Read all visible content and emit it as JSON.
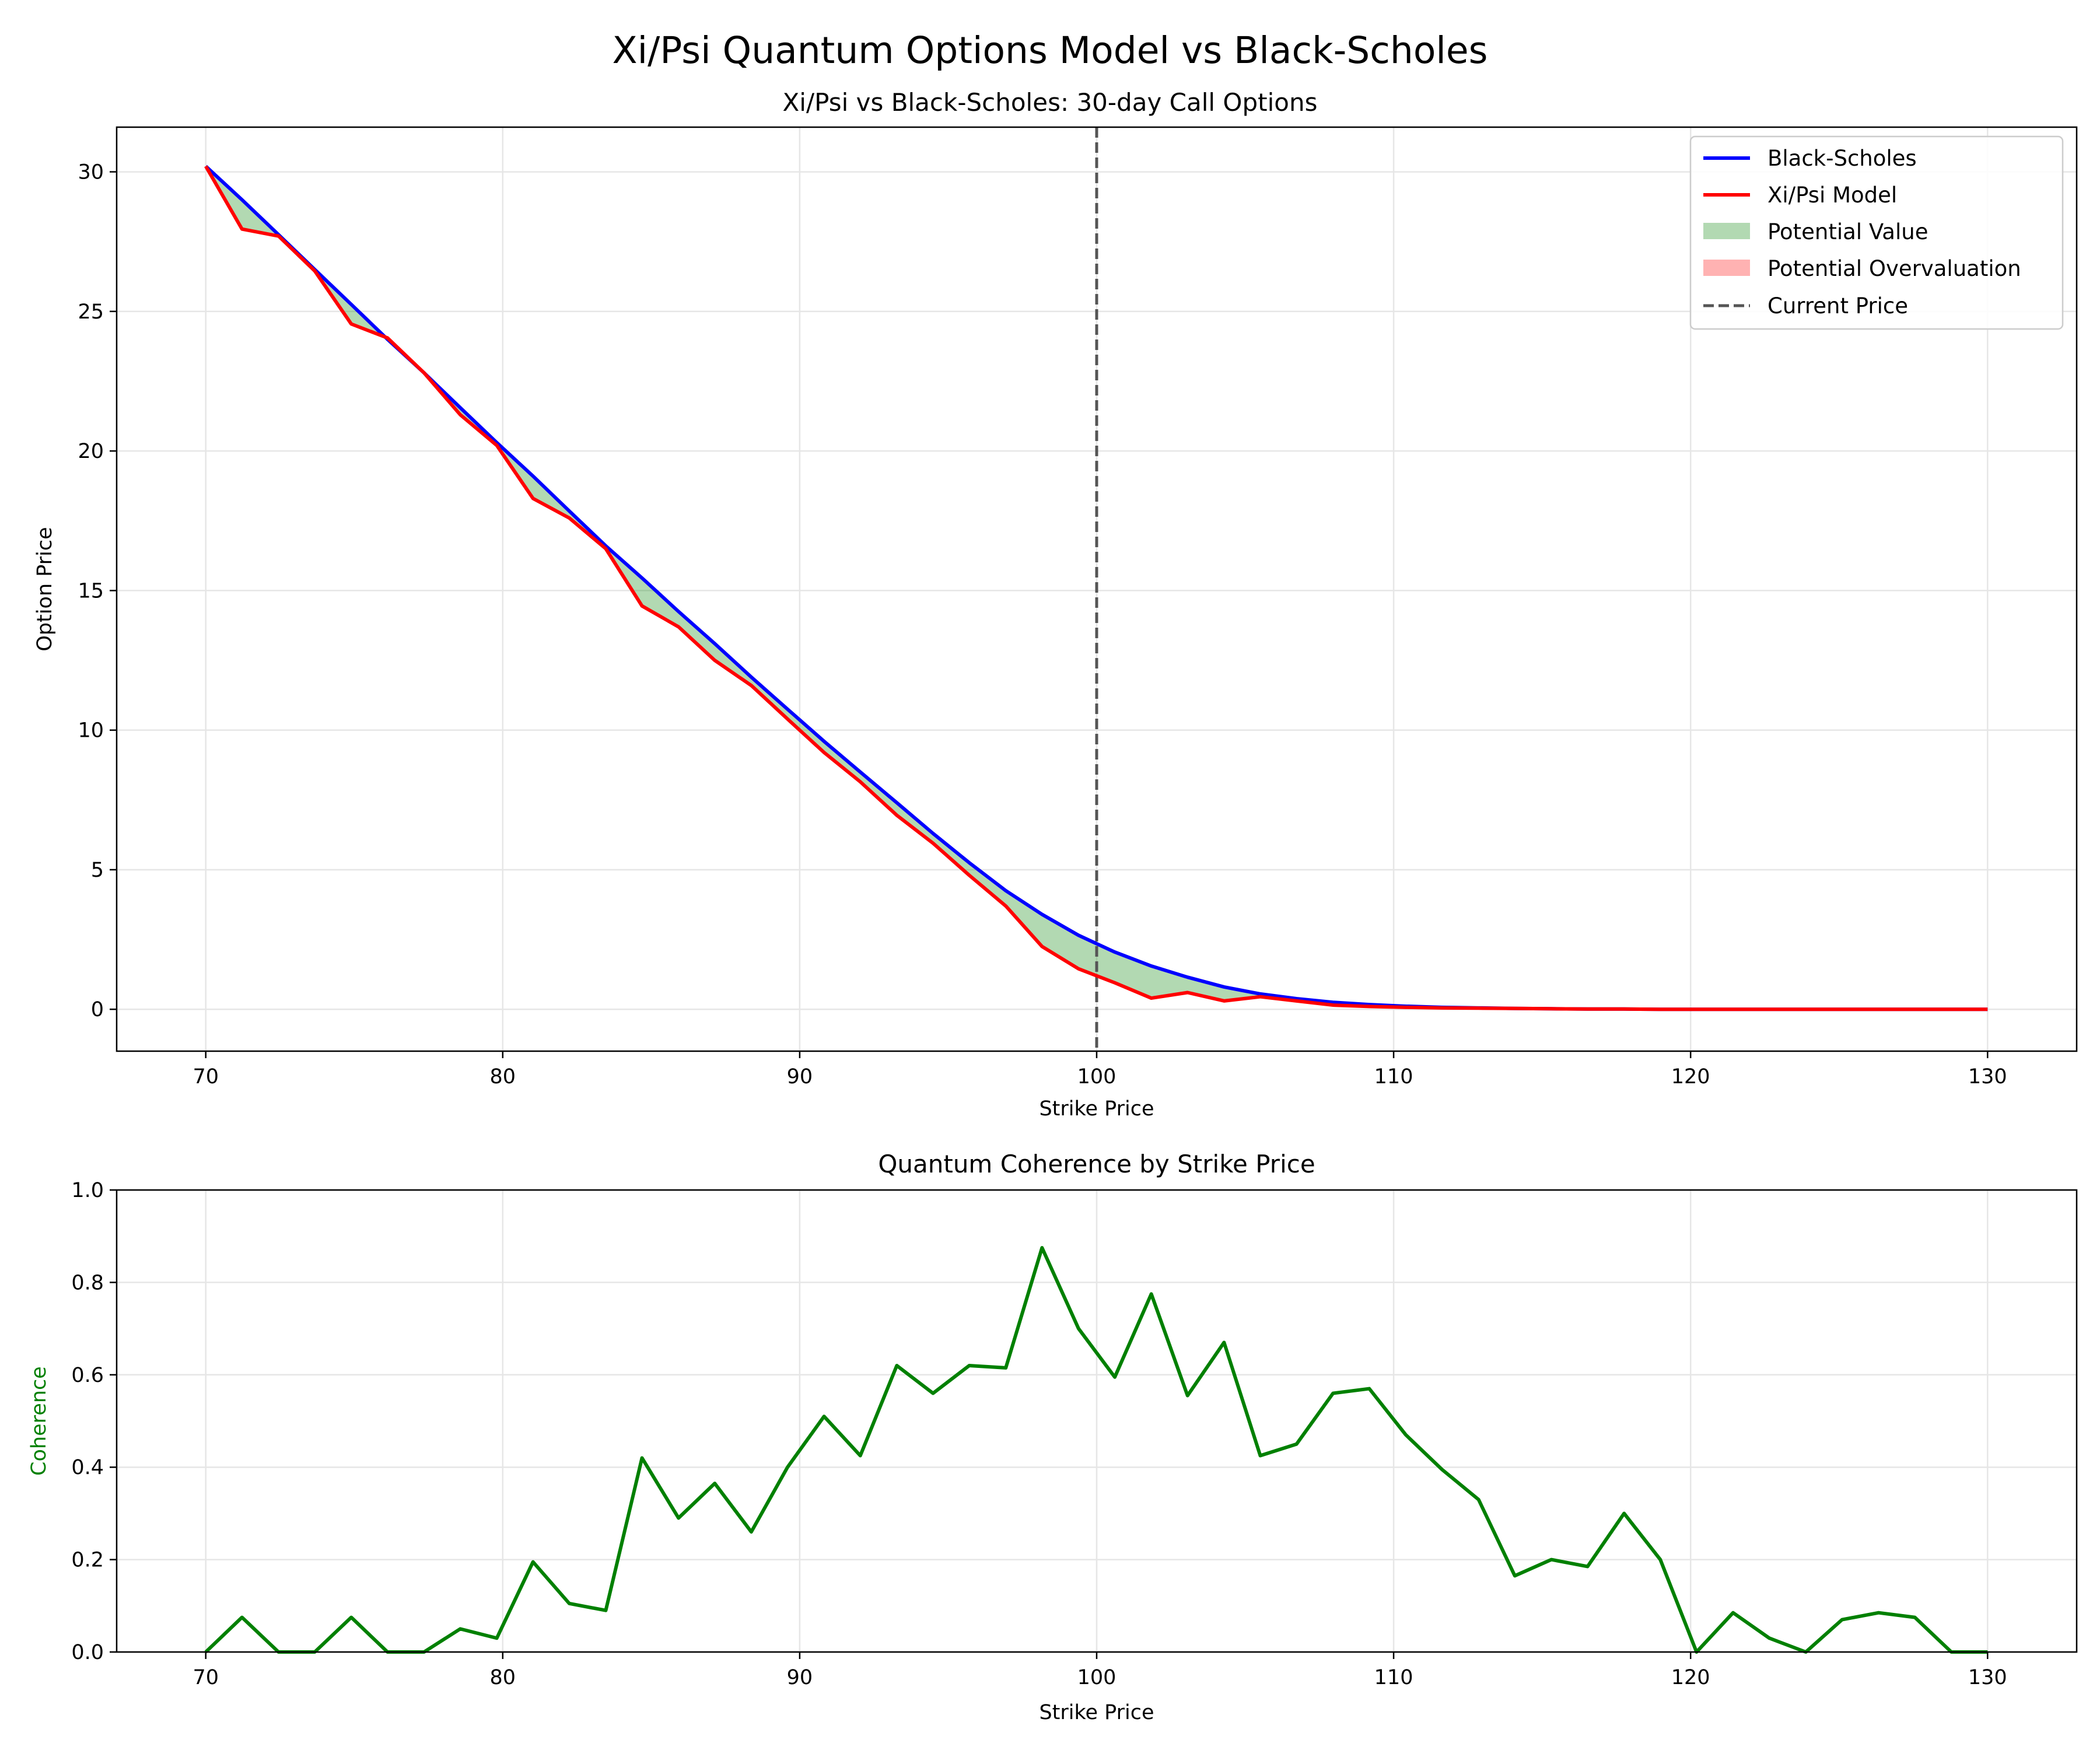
{
  "figure": {
    "suptitle": "Xi/Psi Quantum Options Model vs Black-Scholes"
  },
  "chart_data": [
    {
      "type": "line",
      "title": "Xi/Psi vs Black-Scholes: 30-day Call Options",
      "xlabel": "Strike Price",
      "ylabel": "Option Price",
      "xlim": [
        67,
        133
      ],
      "ylim": [
        -1.5,
        31.6
      ],
      "xticks": [
        70,
        80,
        90,
        100,
        110,
        120,
        130
      ],
      "yticks": [
        0,
        5,
        10,
        15,
        20,
        25,
        30
      ],
      "grid": true,
      "legend_position": "upper right",
      "x": [
        70,
        71.22,
        72.45,
        73.67,
        74.9,
        76.12,
        77.35,
        78.57,
        79.8,
        81.02,
        82.24,
        83.47,
        84.69,
        85.92,
        87.14,
        88.37,
        89.59,
        90.82,
        92.04,
        93.27,
        94.49,
        95.71,
        96.94,
        98.16,
        99.39,
        100.61,
        101.84,
        103.06,
        104.29,
        105.51,
        106.73,
        107.96,
        109.18,
        110.41,
        111.63,
        112.86,
        114.08,
        115.31,
        116.53,
        117.76,
        118.98,
        120.2,
        121.43,
        122.65,
        123.88,
        125.1,
        126.33,
        127.55,
        128.78,
        130
      ],
      "series": [
        {
          "name": "Black-Scholes",
          "color": "#0000ff",
          "values": [
            30.2,
            29.0,
            27.75,
            26.5,
            25.25,
            24.0,
            22.8,
            21.55,
            20.3,
            19.1,
            17.85,
            16.6,
            15.45,
            14.25,
            13.1,
            11.9,
            10.75,
            9.6,
            8.5,
            7.4,
            6.3,
            5.25,
            4.25,
            3.4,
            2.65,
            2.05,
            1.55,
            1.15,
            0.8,
            0.55,
            0.38,
            0.25,
            0.17,
            0.11,
            0.07,
            0.05,
            0.03,
            0.02,
            0.01,
            0.01,
            0.0,
            0.0,
            0.0,
            0.0,
            0.0,
            0.0,
            0.0,
            0.0,
            0.0,
            0.0
          ]
        },
        {
          "name": "Xi/Psi Model",
          "color": "#ff0000",
          "values": [
            30.2,
            27.95,
            27.7,
            26.45,
            24.55,
            24.05,
            22.8,
            21.3,
            20.2,
            18.3,
            17.6,
            16.5,
            14.45,
            13.7,
            12.5,
            11.6,
            10.4,
            9.2,
            8.15,
            6.95,
            5.95,
            4.8,
            3.7,
            2.25,
            1.45,
            0.95,
            0.4,
            0.6,
            0.3,
            0.45,
            0.3,
            0.15,
            0.1,
            0.07,
            0.05,
            0.04,
            0.03,
            0.02,
            0.01,
            0.01,
            0.0,
            0.0,
            0.0,
            0.0,
            0.0,
            0.0,
            0.0,
            0.0,
            0.0,
            0.0
          ]
        }
      ],
      "fills": [
        {
          "name": "Potential Value",
          "color": "#008000",
          "alpha": 0.3
        },
        {
          "name": "Potential Overvaluation",
          "color": "#ff0000",
          "alpha": 0.3
        }
      ],
      "vline": {
        "x": 100,
        "name": "Current Price",
        "color": "#555555",
        "style": "dashed"
      }
    },
    {
      "type": "line",
      "title": "Quantum Coherence by Strike Price",
      "xlabel": "Strike Price",
      "ylabel": "Coherence",
      "ylabel_color": "#008000",
      "xlim": [
        67,
        133
      ],
      "ylim": [
        0.0,
        1.0
      ],
      "xticks": [
        70,
        80,
        90,
        100,
        110,
        120,
        130
      ],
      "yticks": [
        "0.0",
        "0.2",
        "0.4",
        "0.6",
        "0.8",
        "1.0"
      ],
      "grid": true,
      "x": [
        70,
        71.22,
        72.45,
        73.67,
        74.9,
        76.12,
        77.35,
        78.57,
        79.8,
        81.02,
        82.24,
        83.47,
        84.69,
        85.92,
        87.14,
        88.37,
        89.59,
        90.82,
        92.04,
        93.27,
        94.49,
        95.71,
        96.94,
        98.16,
        99.39,
        100.61,
        101.84,
        103.06,
        104.29,
        105.51,
        106.73,
        107.96,
        109.18,
        110.41,
        111.63,
        112.86,
        114.08,
        115.31,
        116.53,
        117.76,
        118.98,
        120.2,
        121.43,
        122.65,
        123.88,
        125.1,
        126.33,
        127.55,
        128.78,
        130
      ],
      "series": [
        {
          "color": "#008000",
          "values": [
            0.0,
            0.075,
            0.0,
            0.0,
            0.075,
            0.0,
            0.0,
            0.05,
            0.03,
            0.195,
            0.105,
            0.09,
            0.42,
            0.29,
            0.365,
            0.26,
            0.4,
            0.51,
            0.425,
            0.62,
            0.56,
            0.62,
            0.615,
            0.875,
            0.7,
            0.595,
            0.775,
            0.555,
            0.67,
            0.425,
            0.45,
            0.56,
            0.57,
            0.47,
            0.395,
            0.33,
            0.165,
            0.2,
            0.185,
            0.3,
            0.2,
            0.0,
            0.085,
            0.03,
            0.0,
            0.07,
            0.085,
            0.075,
            0.0,
            0.0
          ]
        }
      ]
    }
  ]
}
